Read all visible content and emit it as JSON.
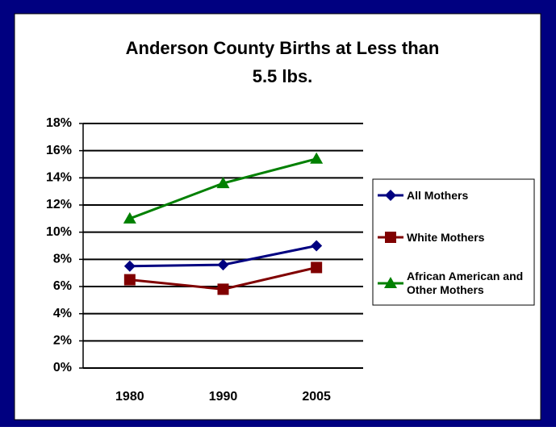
{
  "chart_data": {
    "type": "line",
    "title": "Anderson County Births at Less than 5.5 lbs.",
    "categories": [
      "1980",
      "1990",
      "2005"
    ],
    "series": [
      {
        "name": "All Mothers",
        "color": "#000080",
        "marker": "diamond",
        "values": [
          7.5,
          7.6,
          9.0
        ]
      },
      {
        "name": "White Mothers",
        "color": "#800000",
        "marker": "square",
        "values": [
          6.5,
          5.8,
          7.4
        ]
      },
      {
        "name": "African American and Other Mothers",
        "color": "#008000",
        "marker": "triangle",
        "values": [
          11.0,
          13.6,
          15.4
        ]
      }
    ],
    "ylim": [
      0,
      18
    ],
    "yticks": [
      {
        "value": 0,
        "label": "0%"
      },
      {
        "value": 2,
        "label": "2%"
      },
      {
        "value": 4,
        "label": "4%"
      },
      {
        "value": 6,
        "label": "6%"
      },
      {
        "value": 8,
        "label": "8%"
      },
      {
        "value": 10,
        "label": "10%"
      },
      {
        "value": 12,
        "label": "12%"
      },
      {
        "value": 14,
        "label": "14%"
      },
      {
        "value": 16,
        "label": "16%"
      },
      {
        "value": 18,
        "label": "18%"
      }
    ],
    "grid": true,
    "legend": "right"
  }
}
